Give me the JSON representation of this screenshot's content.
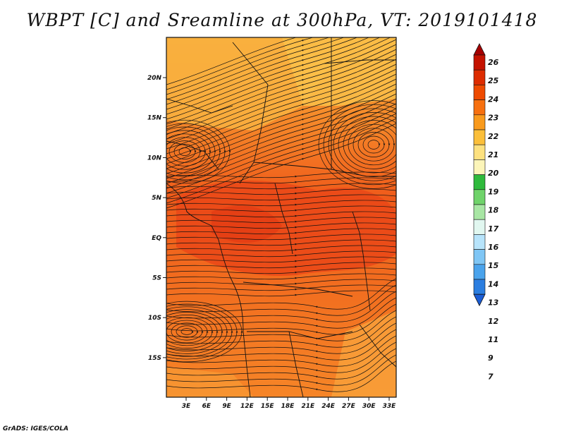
{
  "title": "WBPT [C] and Sreamline at 300hPa, VT: 2019101418",
  "credit": "GrADS: IGES/COLA",
  "map": {
    "lon_ticks": [
      "3E",
      "6E",
      "9E",
      "12E",
      "15E",
      "18E",
      "21E",
      "24E",
      "27E",
      "30E",
      "33E"
    ],
    "lat_ticks": [
      "20N",
      "15N",
      "10N",
      "5N",
      "EQ",
      "5S",
      "10S",
      "15S"
    ]
  },
  "colorbar": {
    "labels": [
      "26",
      "25",
      "24",
      "23",
      "22",
      "21",
      "20",
      "19",
      "18",
      "17",
      "16",
      "15",
      "14",
      "13",
      "12",
      "11",
      "9",
      "7"
    ],
    "colors": [
      "#a50000",
      "#c41200",
      "#dd2c00",
      "#ee4a00",
      "#f7700f",
      "#f99a1c",
      "#fbbf3a",
      "#fde17f",
      "#fcf5b9",
      "#2fba3c",
      "#6fd36a",
      "#a8e6a4",
      "#e1f7f0",
      "#b7e4fb",
      "#7fc6f5",
      "#4aa3ec",
      "#2b7ee0",
      "#1a5dd6"
    ]
  }
}
